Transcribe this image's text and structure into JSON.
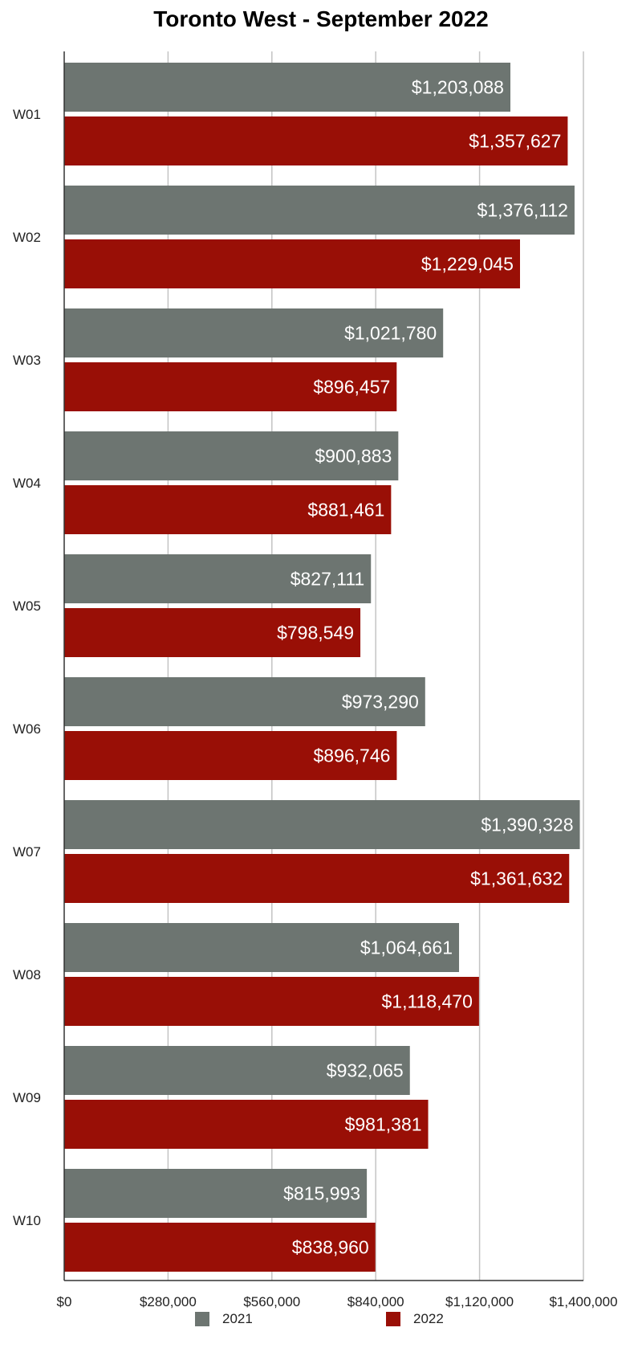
{
  "chart_data": {
    "type": "bar",
    "orientation": "horizontal",
    "title": "Toronto West - September 2022",
    "xlabel": "",
    "ylabel": "",
    "categories": [
      "W01",
      "W02",
      "W03",
      "W04",
      "W05",
      "W06",
      "W07",
      "W08",
      "W09",
      "W10"
    ],
    "series": [
      {
        "name": "2021",
        "color": "#6d7571",
        "values": [
          1203088,
          1376112,
          1021780,
          900883,
          827111,
          973290,
          1390328,
          1064661,
          932065,
          815993
        ],
        "value_labels": [
          "$1,203,088",
          "$1,376,112",
          "$1,021,780",
          "$900,883",
          "$827,111",
          "$973,290",
          "$1,390,328",
          "$1,064,661",
          "$932,065",
          "$815,993"
        ]
      },
      {
        "name": "2022",
        "color": "#990f06",
        "values": [
          1357627,
          1229045,
          896457,
          881461,
          798549,
          896746,
          1361632,
          1118470,
          981381,
          838960
        ],
        "value_labels": [
          "$1,357,627",
          "$1,229,045",
          "$896,457",
          "$881,461",
          "$798,549",
          "$896,746",
          "$1,361,632",
          "$1,118,470",
          "$981,381",
          "$838,960"
        ]
      }
    ],
    "xlim": [
      0,
      1400000
    ],
    "xticks": [
      0,
      280000,
      560000,
      840000,
      1120000,
      1400000
    ],
    "xtick_labels": [
      "$0",
      "$280,000",
      "$560,000",
      "$840,000",
      "$1,120,000",
      "$1,400,000"
    ],
    "grid": true,
    "legend_position": "bottom"
  }
}
